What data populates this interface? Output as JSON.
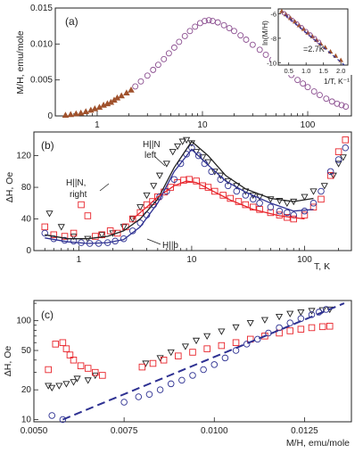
{
  "chart_data": [
    {
      "panel": "a",
      "type": "scatter",
      "panel_label": "(a)",
      "ylabel": "M/H, emu/mole",
      "xscale": "log",
      "xlim": [
        0.4,
        260
      ],
      "ylim": [
        0,
        0.015
      ],
      "x_ticklabels": [
        "1",
        "10",
        "100"
      ],
      "y_ticklabels": [
        "0",
        "0.005",
        "0.010",
        "0.015"
      ],
      "grid": false,
      "series": [
        {
          "marker": "triangle-up",
          "color": "#a0522d",
          "x": [
            0.5,
            0.56,
            0.63,
            0.7,
            0.78,
            0.87,
            0.95,
            1.05,
            1.15,
            1.25,
            1.35,
            1.45,
            1.55,
            1.7,
            1.9,
            2.1
          ],
          "y": [
            0.0001,
            0.0002,
            0.0003,
            0.0004,
            0.0006,
            0.0008,
            0.001,
            0.0012,
            0.0015,
            0.0017,
            0.0019,
            0.0022,
            0.0025,
            0.0028,
            0.0032,
            0.0036
          ]
        },
        {
          "marker": "circle",
          "color": "#8a4d8f",
          "x": [
            2.3,
            2.6,
            3,
            3.4,
            3.8,
            4.3,
            4.8,
            5.4,
            6,
            6.8,
            7.6,
            8.5,
            9.5,
            10.5,
            11.5,
            12.5,
            14,
            16,
            18,
            20,
            23,
            26,
            30,
            35,
            40,
            46,
            53,
            60,
            70,
            80,
            90,
            100,
            115,
            130,
            150,
            170,
            190,
            210,
            230
          ],
          "y": [
            0.0041,
            0.0048,
            0.0056,
            0.0064,
            0.0071,
            0.0079,
            0.0087,
            0.0095,
            0.0103,
            0.0111,
            0.0118,
            0.0124,
            0.0129,
            0.0132,
            0.0133,
            0.0132,
            0.013,
            0.0126,
            0.0122,
            0.0118,
            0.0112,
            0.0106,
            0.0099,
            0.0092,
            0.0085,
            0.0078,
            0.0071,
            0.0064,
            0.0057,
            0.005,
            0.0045,
            0.004,
            0.0034,
            0.0029,
            0.0024,
            0.002,
            0.0017,
            0.0015,
            0.0013
          ]
        }
      ]
    },
    {
      "panel": "a-inset",
      "type": "scatter",
      "ylabel": "ln(M/H)",
      "xlabel": "1/T, K⁻¹",
      "xlim": [
        0.2,
        2.2
      ],
      "ylim": [
        -10.2,
        -5.6
      ],
      "x_ticklabels": [
        "0.5",
        "1.0",
        "1.5",
        "2.0"
      ],
      "y_ticklabels": [
        "-6",
        "-8",
        "-10"
      ],
      "annotation": "=2.7K",
      "fit_line": {
        "x": [
          0.4,
          2.1
        ],
        "y": [
          -6.1,
          -10.2
        ]
      },
      "series": [
        {
          "marker": "triangle-up",
          "color": "#a0522d",
          "x": [
            0.3,
            0.42,
            0.55,
            0.68,
            0.8,
            0.93,
            1.05,
            1.18,
            1.3,
            1.42,
            1.55,
            1.7,
            1.85,
            2.0
          ],
          "y": [
            -5.8,
            -6.05,
            -6.35,
            -6.65,
            -6.95,
            -7.25,
            -7.55,
            -7.85,
            -8.15,
            -8.45,
            -8.75,
            -9.1,
            -9.45,
            -9.8
          ]
        },
        {
          "marker": "circle",
          "color": "#8a4d8f",
          "x": [
            0.36,
            0.48,
            0.6,
            0.74,
            0.87,
            1.0,
            1.12,
            1.25,
            1.37
          ],
          "y": [
            -5.95,
            -6.2,
            -6.5,
            -6.8,
            -7.1,
            -7.42,
            -7.7,
            -8.0,
            -8.3
          ]
        }
      ]
    },
    {
      "panel": "b",
      "type": "scatter",
      "panel_label": "(b)",
      "ylabel": "ΔH, Oe",
      "xlabel": "T, K",
      "xscale": "log",
      "xlim": [
        0.4,
        260
      ],
      "ylim": [
        0,
        150
      ],
      "x_ticklabels": [
        "1",
        "10",
        "100"
      ],
      "y_ticklabels": [
        "0",
        "40",
        "80",
        "120"
      ],
      "annotations": {
        "left": [
          "H||N",
          "left"
        ],
        "right": [
          "H||N,",
          "right"
        ],
        "b": "H||b"
      },
      "series": [
        {
          "name": "H||N, left",
          "marker": "triangle-down",
          "color": "#222222",
          "x": [
            0.55,
            0.7,
            0.9,
            1.2,
            1.6,
            2.0,
            2.5,
            3.0,
            3.5,
            4.0,
            4.6,
            5.2,
            6.0,
            6.8,
            7.5,
            8.3,
            9.0,
            10,
            11,
            12.5,
            14,
            16,
            18,
            21,
            25,
            30,
            35,
            40,
            50,
            60,
            70,
            80,
            100,
            120,
            150,
            180,
            200,
            220
          ],
          "y": [
            47,
            30,
            18,
            15,
            20,
            22,
            30,
            40,
            55,
            70,
            82,
            95,
            110,
            125,
            132,
            138,
            140,
            136,
            125,
            118,
            112,
            100,
            95,
            88,
            82,
            75,
            70,
            68,
            65,
            63,
            60,
            62,
            68,
            75,
            82,
            95,
            110,
            118
          ]
        },
        {
          "name": "H||N, right",
          "marker": "square",
          "color": "#e8232a",
          "x": [
            0.5,
            0.6,
            0.75,
            0.9,
            1.05,
            1.2,
            1.4,
            1.6,
            1.9,
            2.2,
            2.6,
            3.0,
            3.5,
            4.0,
            4.5,
            5.0,
            5.7,
            6.5,
            7.5,
            8.5,
            9.5,
            11,
            12.5,
            14,
            16,
            19,
            22,
            26,
            30,
            35,
            40,
            50,
            60,
            70,
            80,
            100,
            120,
            140,
            170,
            200,
            230
          ],
          "y": [
            30,
            20,
            18,
            22,
            58,
            44,
            18,
            20,
            25,
            22,
            30,
            40,
            48,
            58,
            62,
            68,
            74,
            80,
            86,
            89,
            90,
            88,
            82,
            80,
            75,
            70,
            66,
            62,
            58,
            55,
            52,
            48,
            45,
            42,
            40,
            45,
            55,
            65,
            95,
            125,
            140
          ]
        },
        {
          "name": "H||b",
          "marker": "circle",
          "color": "#2e3192",
          "x": [
            0.5,
            0.6,
            0.75,
            0.9,
            1.05,
            1.25,
            1.5,
            1.8,
            2.1,
            2.5,
            3.0,
            3.5,
            4.0,
            4.6,
            5.2,
            6.0,
            7.0,
            8.0,
            9.0,
            10,
            11.5,
            13,
            15,
            18,
            21,
            25,
            30,
            35,
            40,
            50,
            60,
            70,
            80,
            100,
            120,
            140,
            170,
            200,
            230
          ],
          "y": [
            22,
            15,
            13,
            12,
            10,
            9,
            9,
            10,
            12,
            15,
            25,
            35,
            45,
            58,
            68,
            75,
            90,
            110,
            122,
            130,
            120,
            110,
            100,
            90,
            82,
            75,
            70,
            65,
            60,
            55,
            50,
            48,
            45,
            50,
            60,
            75,
            100,
            115,
            130
          ]
        }
      ],
      "fits": [
        {
          "color": "#222222",
          "x": [
            0.5,
            0.8,
            1.2,
            1.8,
            2.5,
            3.5,
            5,
            7,
            10,
            14,
            20,
            30,
            50,
            80,
            120
          ],
          "y": [
            20,
            15,
            15,
            18,
            25,
            40,
            65,
            105,
            138,
            120,
            95,
            78,
            66,
            62,
            66
          ]
        },
        {
          "color": "#e8232a",
          "x": [
            3,
            4,
            5,
            7,
            9,
            11,
            15,
            22,
            35,
            60,
            100
          ],
          "y": [
            40,
            55,
            68,
            82,
            88,
            86,
            76,
            64,
            52,
            44,
            40
          ]
        },
        {
          "color": "#2e3192",
          "x": [
            0.5,
            0.8,
            1.2,
            1.8,
            2.5,
            3.5,
            5,
            7,
            10,
            14,
            20,
            30,
            50,
            80,
            120
          ],
          "y": [
            16,
            11,
            9,
            10,
            14,
            30,
            60,
            100,
            128,
            108,
            88,
            74,
            60,
            50,
            52
          ]
        }
      ]
    },
    {
      "panel": "c",
      "type": "scatter",
      "panel_label": "(c)",
      "ylabel": "ΔH, Oe",
      "xlabel": "M/H, emu/mole",
      "yscale": "log",
      "xlim": [
        0.005,
        0.0138
      ],
      "ylim": [
        9.5,
        160
      ],
      "x_ticklabels": [
        "0.0050",
        "0.0075",
        "0.0100",
        "0.0125"
      ],
      "y_ticklabels": [
        "10",
        "20",
        "50",
        "100"
      ],
      "fit_line": {
        "x": [
          0.0058,
          0.0136
        ],
        "y": [
          10,
          150
        ]
      },
      "series": [
        {
          "marker": "triangle-down",
          "color": "#222222",
          "x": [
            0.0054,
            0.0055,
            0.0057,
            0.0059,
            0.0061,
            0.0062,
            0.0065,
            0.0067,
            0.0081,
            0.0085,
            0.0088,
            0.0092,
            0.0095,
            0.0098,
            0.0102,
            0.0106,
            0.011,
            0.0114,
            0.0118,
            0.0121,
            0.0124,
            0.0127,
            0.013,
            0.0132
          ],
          "y": [
            22,
            21,
            22,
            23,
            24,
            26,
            25,
            28,
            37,
            42,
            48,
            55,
            63,
            70,
            78,
            86,
            95,
            102,
            110,
            118,
            122,
            126,
            128,
            130
          ]
        },
        {
          "marker": "square",
          "color": "#e8232a",
          "x": [
            0.0054,
            0.0056,
            0.0058,
            0.0059,
            0.006,
            0.0061,
            0.0063,
            0.0065,
            0.0067,
            0.0069,
            0.008,
            0.0083,
            0.0086,
            0.009,
            0.0094,
            0.0098,
            0.0102,
            0.0106,
            0.011,
            0.0114,
            0.0118,
            0.0121,
            0.0124,
            0.0127,
            0.013,
            0.0132
          ],
          "y": [
            32,
            58,
            60,
            52,
            45,
            40,
            35,
            33,
            30,
            28,
            34,
            37,
            40,
            44,
            48,
            52,
            56,
            60,
            65,
            70,
            75,
            79,
            82,
            85,
            87,
            88
          ]
        },
        {
          "marker": "circle",
          "color": "#2e3192",
          "x": [
            0.0055,
            0.0058,
            0.0075,
            0.0079,
            0.0082,
            0.0085,
            0.0088,
            0.0091,
            0.0094,
            0.0097,
            0.01,
            0.0103,
            0.0106,
            0.0109,
            0.0112,
            0.0115,
            0.0118,
            0.0121,
            0.0124,
            0.0127,
            0.0129,
            0.0131
          ],
          "y": [
            11,
            10,
            15,
            17,
            18,
            20,
            23,
            25,
            28,
            32,
            36,
            42,
            50,
            58,
            65,
            75,
            85,
            95,
            105,
            115,
            122,
            130
          ]
        }
      ]
    }
  ]
}
